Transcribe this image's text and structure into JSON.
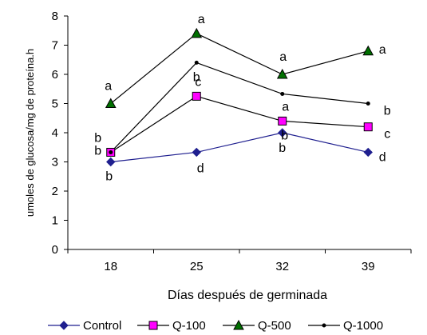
{
  "chart_data": {
    "type": "line",
    "title": "",
    "xlabel": "Días después de germinada",
    "ylabel": "umoles de glucosa/mg de proteína.h",
    "categories": [
      "18",
      "25",
      "32",
      "39"
    ],
    "ylim": [
      0,
      8
    ],
    "yticks": [
      "0",
      "1",
      "2",
      "3",
      "4",
      "5",
      "6",
      "7",
      "8"
    ],
    "grid": false,
    "legend_position": "bottom",
    "series": [
      {
        "name": "Control",
        "values": [
          3.0,
          3.33,
          4.0,
          3.33
        ],
        "color": "#1f1f8f",
        "marker": "diamond"
      },
      {
        "name": "Q-100",
        "values": [
          3.33,
          5.25,
          4.4,
          4.2
        ],
        "color": "#ff00ff",
        "marker": "square"
      },
      {
        "name": "Q-500",
        "values": [
          5.0,
          7.4,
          6.0,
          6.8
        ],
        "color": "#007000",
        "marker": "triangle"
      },
      {
        "name": "Q-1000",
        "values": [
          3.33,
          6.4,
          5.33,
          5.0
        ],
        "color": "#000000",
        "marker": "dot"
      }
    ],
    "annotations": [
      {
        "text": "a",
        "x": "18",
        "y": 5.0
      },
      {
        "text": "b",
        "x": "18",
        "y": 3.33
      },
      {
        "text": "b",
        "x": "18",
        "y": 3.33
      },
      {
        "text": "b",
        "x": "18",
        "y": 3.0
      },
      {
        "text": "a",
        "x": "25",
        "y": 7.4
      },
      {
        "text": "b",
        "x": "25",
        "y": 6.4
      },
      {
        "text": "c",
        "x": "25",
        "y": 5.25
      },
      {
        "text": "d",
        "x": "25",
        "y": 3.33
      },
      {
        "text": "a",
        "x": "32",
        "y": 6.0
      },
      {
        "text": "a",
        "x": "32",
        "y": 5.33
      },
      {
        "text": "b",
        "x": "32",
        "y": 4.4
      },
      {
        "text": "b",
        "x": "32",
        "y": 4.0
      },
      {
        "text": "a",
        "x": "39",
        "y": 6.8
      },
      {
        "text": "b",
        "x": "39",
        "y": 5.0
      },
      {
        "text": "c",
        "x": "39",
        "y": 4.2
      },
      {
        "text": "d",
        "x": "39",
        "y": 3.33
      }
    ]
  }
}
